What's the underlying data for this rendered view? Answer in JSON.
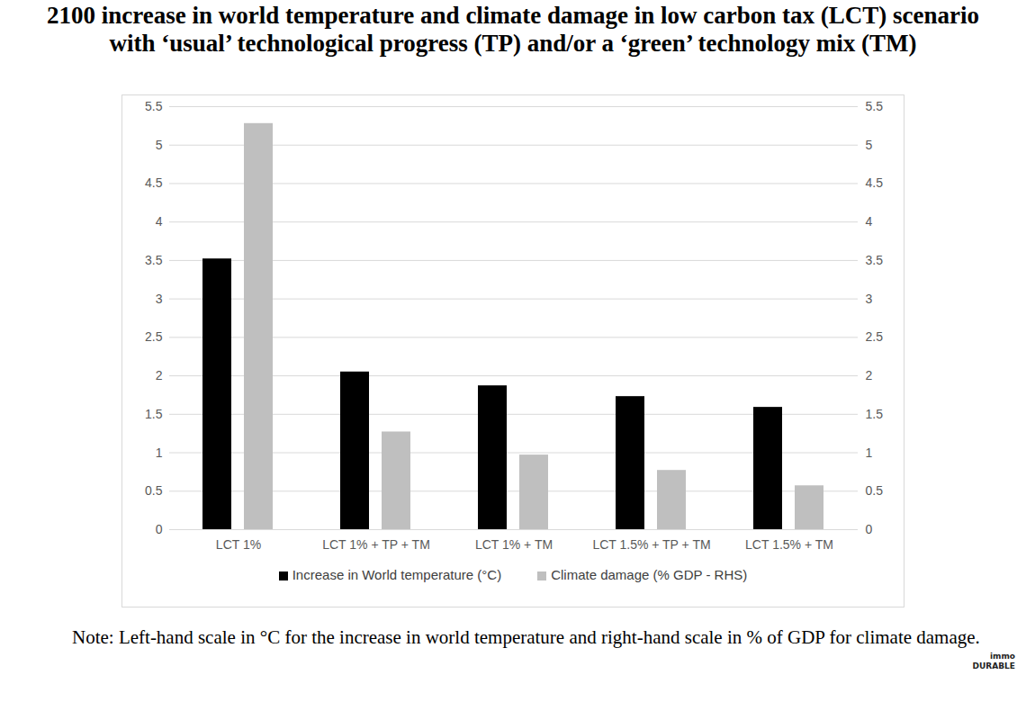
{
  "chart_data": {
    "type": "bar",
    "title": "2100 increase in world temperature and climate damage in low carbon tax (LCT) scenario with ‘usual’ technological progress (TP) and/or a ‘green’ technology mix (TM)",
    "categories": [
      "LCT 1%",
      "LCT 1% + TP + TM",
      "LCT 1% + TM",
      "LCT 1.5% + TP + TM",
      "LCT 1.5% + TM"
    ],
    "series": [
      {
        "name": "Increase in World temperature (°C)",
        "color": "#000000",
        "values": [
          3.52,
          2.05,
          1.87,
          1.73,
          1.59
        ]
      },
      {
        "name": "Climate damage (% GDP - RHS)",
        "color": "#bfbfbf",
        "axis": "y2",
        "values": [
          5.28,
          1.27,
          0.97,
          0.77,
          0.57
        ]
      }
    ],
    "ylim": [
      0,
      5.5
    ],
    "yticks": [
      0,
      0.5,
      1,
      1.5,
      2,
      2.5,
      3,
      3.5,
      4,
      4.5,
      5,
      5.5
    ],
    "y2lim": [
      0,
      5.5
    ],
    "y2ticks": [
      0,
      0.5,
      1,
      1.5,
      2,
      2.5,
      3,
      3.5,
      4,
      4.5,
      5,
      5.5
    ],
    "grid": true,
    "legend": "bottom",
    "note": "Note: Left-hand scale in °C for the increase in world temperature and right-hand scale in % of GDP for climate damage.",
    "watermark": [
      "immo",
      "DURABLE"
    ]
  }
}
